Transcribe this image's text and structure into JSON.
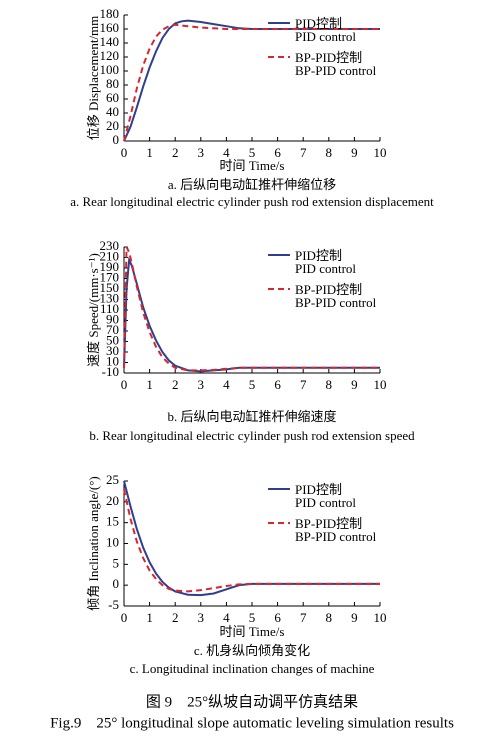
{
  "chart_data": [
    {
      "type": "line",
      "ylabel": "位移 Displacement/mm",
      "xlabel": "时间 Time/s",
      "caption_zh": "a. 后纵向电动缸推杆伸缩位移",
      "caption_en": "a. Rear longitudinal electric cylinder push rod extension displacement",
      "xlim": [
        0,
        10
      ],
      "xticks": [
        0,
        1,
        2,
        3,
        4,
        5,
        6,
        7,
        8,
        9,
        10
      ],
      "ylim": [
        0,
        180
      ],
      "yticks": [
        0,
        20,
        40,
        60,
        80,
        100,
        120,
        140,
        160,
        180
      ],
      "legend": "upper right",
      "x": [
        0,
        0.25,
        0.5,
        0.75,
        1,
        1.25,
        1.5,
        1.75,
        2,
        2.25,
        2.5,
        3,
        3.5,
        4,
        4.5,
        5,
        6,
        7,
        8,
        9,
        10
      ],
      "series": [
        {
          "name": "PID控制\nPID control",
          "color": "#2e3f8f",
          "dash": false,
          "values": [
            0,
            20,
            48,
            78,
            105,
            128,
            147,
            160,
            168,
            171,
            172,
            170,
            167,
            164,
            161,
            160,
            160,
            160,
            160,
            160,
            160
          ]
        },
        {
          "name": "BP-PID控制\nBP-PID control",
          "color": "#d9262b",
          "dash": true,
          "values": [
            0,
            35,
            75,
            108,
            132,
            149,
            159,
            164,
            166,
            165,
            164,
            162,
            161,
            160,
            160,
            160,
            160,
            160,
            160,
            160,
            160
          ]
        }
      ]
    },
    {
      "type": "line",
      "ylabel": "速度 Speed/(mm·s⁻¹)",
      "caption_zh": "b. 后纵向电动缸推杆伸缩速度",
      "caption_en": "b. Rear longitudinal electric cylinder push rod extension speed",
      "xlim": [
        0,
        10
      ],
      "xticks": [
        0,
        1,
        2,
        3,
        4,
        5,
        6,
        7,
        8,
        9,
        10
      ],
      "ylim": [
        -10,
        230
      ],
      "yticks": [
        -10,
        10,
        30,
        50,
        70,
        90,
        110,
        130,
        150,
        170,
        190,
        210,
        230
      ],
      "legend": "upper right",
      "x": [
        0,
        0.1,
        0.2,
        0.3,
        0.5,
        0.75,
        1,
        1.25,
        1.5,
        1.75,
        2,
        2.5,
        3,
        3.5,
        4,
        4.5,
        5,
        6,
        7,
        8,
        9,
        10
      ],
      "series": [
        {
          "name": "PID控制\nPID control",
          "color": "#2e3f8f",
          "dash": false,
          "values": [
            0,
            150,
            205,
            195,
            160,
            115,
            80,
            52,
            30,
            14,
            4,
            -5,
            -7,
            -5,
            -3,
            0,
            0,
            0,
            0,
            0,
            0,
            0
          ]
        },
        {
          "name": "BP-PID控制\nBP-PID control",
          "color": "#d9262b",
          "dash": true,
          "values": [
            0,
            230,
            220,
            200,
            155,
            105,
            68,
            40,
            20,
            8,
            0,
            -5,
            -5,
            -4,
            -2,
            0,
            0,
            0,
            0,
            0,
            0,
            0
          ]
        }
      ]
    },
    {
      "type": "line",
      "ylabel": "倾角 Inclination angle/(°)",
      "xlabel": "时间 Time/s",
      "caption_zh": "c. 机身纵向倾角变化",
      "caption_en": "c. Longitudinal inclination changes of machine",
      "xlim": [
        0,
        10
      ],
      "xticks": [
        0,
        1,
        2,
        3,
        4,
        5,
        6,
        7,
        8,
        9,
        10
      ],
      "ylim": [
        -5,
        25
      ],
      "yticks": [
        -5,
        0,
        5,
        10,
        15,
        20,
        25
      ],
      "legend": "upper right",
      "x": [
        0,
        0.25,
        0.5,
        0.75,
        1,
        1.25,
        1.5,
        1.75,
        2,
        2.5,
        3,
        3.5,
        4,
        4.5,
        5,
        6,
        7,
        8,
        9,
        10
      ],
      "series": [
        {
          "name": "PID控制\nPID control",
          "color": "#2e3f8f",
          "dash": false,
          "values": [
            25,
            19,
            13.5,
            9,
            5.5,
            2.8,
            0.8,
            -0.6,
            -1.5,
            -2.3,
            -2.4,
            -2,
            -1,
            0,
            0.3,
            0.3,
            0.3,
            0.3,
            0.3,
            0.3
          ]
        },
        {
          "name": "BP-PID控制\nBP-PID control",
          "color": "#d9262b",
          "dash": true,
          "values": [
            23,
            16,
            10.5,
            6.5,
            3.5,
            1.5,
            0,
            -0.9,
            -1.3,
            -1.5,
            -1.2,
            -0.7,
            -0.2,
            0.2,
            0.3,
            0.3,
            0.3,
            0.3,
            0.3,
            0.3
          ]
        }
      ]
    }
  ],
  "figure": {
    "caption_zh": "图 9　25°纵坡自动调平仿真结果",
    "caption_en": "Fig.9　25° longitudinal slope automatic leveling simulation results"
  }
}
